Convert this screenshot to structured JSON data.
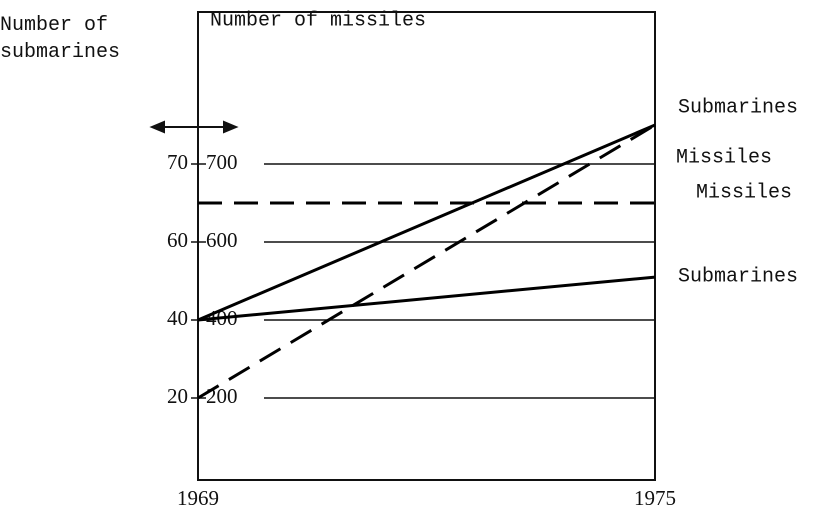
{
  "chart_data": {
    "type": "line",
    "y_label": "Number of submarines",
    "y2_label": "Number of missiles",
    "x": [
      1969,
      1975
    ],
    "xlim": [
      1969,
      1975
    ],
    "xticks": [
      1969,
      1975
    ],
    "yticks": [
      20,
      40,
      60,
      70
    ],
    "y2ticks": [
      200,
      400,
      600,
      700
    ],
    "grid": true,
    "series": [
      {
        "name": "Submarines",
        "color": "#000000",
        "style": "solid",
        "values": [
          40,
          75
        ]
      },
      {
        "name": "Missiles",
        "color": "#000000",
        "style": "dashed",
        "axis": "y2",
        "values": [
          200,
          750
        ]
      },
      {
        "name": "Missiles",
        "color": "#000000",
        "style": "dashed",
        "axis": "y2",
        "values": [
          650,
          650
        ]
      },
      {
        "name": "Submarines",
        "color": "#000000",
        "style": "solid",
        "values": [
          40,
          51
        ]
      }
    ]
  }
}
